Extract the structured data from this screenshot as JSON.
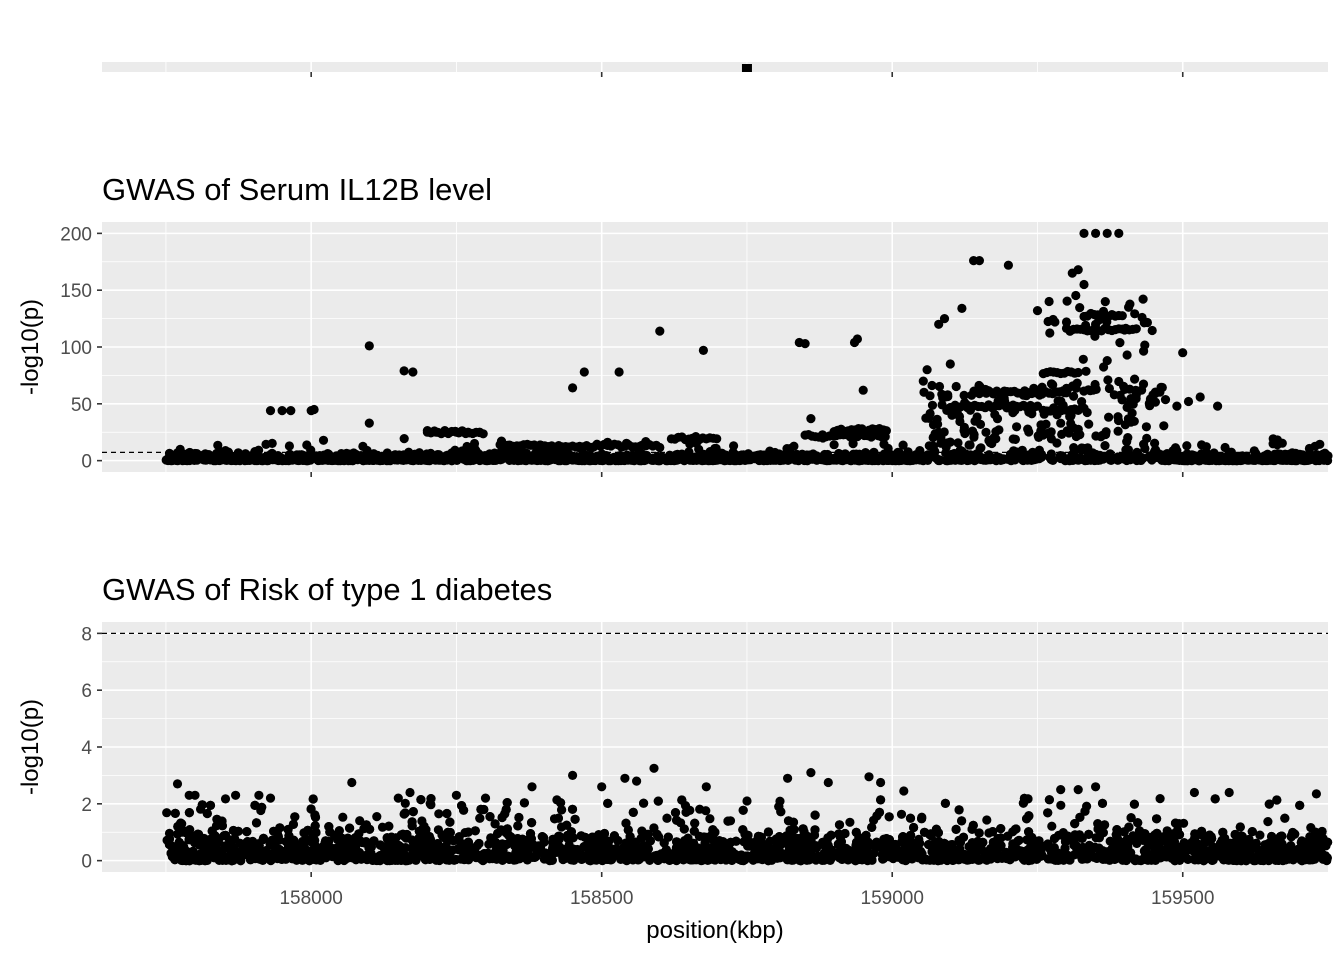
{
  "chart_data": [
    {
      "type": "scatter",
      "panel": "gene-track",
      "title": "",
      "xlim": [
        157640,
        159750
      ],
      "x_ticks": [
        158000,
        158500,
        159000,
        159500
      ],
      "x_tick_labels_shown": false,
      "marker": {
        "x": 158750,
        "shape": "square"
      },
      "grid": true
    },
    {
      "type": "scatter",
      "panel": "serum-il12b",
      "title": "GWAS of Serum IL12B level",
      "xlabel": "",
      "ylabel": "-log10(p)",
      "xlim": [
        157640,
        159750
      ],
      "ylim": [
        -10,
        210
      ],
      "y_ticks": [
        0,
        50,
        100,
        150,
        200
      ],
      "y_tick_labels": [
        "0",
        "50",
        "100",
        "150",
        "200"
      ],
      "x_ticks": [
        158000,
        158500,
        159000,
        159500
      ],
      "x_tick_labels_shown": false,
      "threshold": 7.3,
      "x_range_points": [
        157750,
        159750
      ],
      "grid": true,
      "highlights": [
        {
          "x": 157930,
          "y": 44
        },
        {
          "x": 157950,
          "y": 44
        },
        {
          "x": 157965,
          "y": 44
        },
        {
          "x": 158000,
          "y": 44
        },
        {
          "x": 158005,
          "y": 45
        },
        {
          "x": 158100,
          "y": 33
        },
        {
          "x": 158100,
          "y": 101
        },
        {
          "x": 158160,
          "y": 79
        },
        {
          "x": 158175,
          "y": 78
        },
        {
          "x": 158200,
          "y": 25
        },
        {
          "x": 158215,
          "y": 25
        },
        {
          "x": 158230,
          "y": 25
        },
        {
          "x": 158250,
          "y": 25
        },
        {
          "x": 158270,
          "y": 25
        },
        {
          "x": 158290,
          "y": 25
        },
        {
          "x": 158450,
          "y": 64
        },
        {
          "x": 158470,
          "y": 78
        },
        {
          "x": 158530,
          "y": 78
        },
        {
          "x": 158600,
          "y": 114
        },
        {
          "x": 158675,
          "y": 97
        },
        {
          "x": 158840,
          "y": 104
        },
        {
          "x": 158850,
          "y": 103
        },
        {
          "x": 158860,
          "y": 37
        },
        {
          "x": 158935,
          "y": 104
        },
        {
          "x": 158940,
          "y": 107
        },
        {
          "x": 158950,
          "y": 62
        },
        {
          "x": 158970,
          "y": 27
        },
        {
          "x": 158985,
          "y": 27
        },
        {
          "x": 159060,
          "y": 80
        },
        {
          "x": 159080,
          "y": 120
        },
        {
          "x": 159090,
          "y": 125
        },
        {
          "x": 159100,
          "y": 85
        },
        {
          "x": 159120,
          "y": 134
        },
        {
          "x": 159140,
          "y": 176
        },
        {
          "x": 159150,
          "y": 176
        },
        {
          "x": 159200,
          "y": 172
        },
        {
          "x": 159250,
          "y": 132
        },
        {
          "x": 159270,
          "y": 140
        },
        {
          "x": 159280,
          "y": 122
        },
        {
          "x": 159300,
          "y": 122
        },
        {
          "x": 159310,
          "y": 165
        },
        {
          "x": 159320,
          "y": 168
        },
        {
          "x": 159330,
          "y": 200
        },
        {
          "x": 159350,
          "y": 200
        },
        {
          "x": 159370,
          "y": 200
        },
        {
          "x": 159390,
          "y": 200
        },
        {
          "x": 159330,
          "y": 155
        },
        {
          "x": 159350,
          "y": 120
        },
        {
          "x": 159380,
          "y": 128
        },
        {
          "x": 159400,
          "y": 115
        },
        {
          "x": 159430,
          "y": 126
        },
        {
          "x": 159500,
          "y": 95
        },
        {
          "x": 159510,
          "y": 52
        },
        {
          "x": 159530,
          "y": 56
        },
        {
          "x": 159560,
          "y": 48
        },
        {
          "x": 159490,
          "y": 48
        },
        {
          "x": 159420,
          "y": 58
        },
        {
          "x": 159370,
          "y": 88
        }
      ]
    },
    {
      "type": "scatter",
      "panel": "type1-diabetes",
      "title": "GWAS of Risk of type 1 diabetes",
      "xlabel": "position(kbp)",
      "ylabel": "-log10(p)",
      "xlim": [
        157640,
        159750
      ],
      "ylim": [
        -0.4,
        8.4
      ],
      "y_ticks": [
        0,
        2,
        4,
        6,
        8
      ],
      "y_tick_labels": [
        "0",
        "2",
        "4",
        "6",
        "8"
      ],
      "x_ticks": [
        158000,
        158500,
        159000,
        159500
      ],
      "x_tick_labels": [
        "158000",
        "158500",
        "159000",
        "159500"
      ],
      "threshold": 8,
      "x_range_points": [
        157750,
        159750
      ],
      "grid": true,
      "highlights": [
        {
          "x": 157770,
          "y": 2.7
        },
        {
          "x": 157790,
          "y": 2.3
        },
        {
          "x": 157800,
          "y": 2.3
        },
        {
          "x": 157870,
          "y": 2.3
        },
        {
          "x": 157910,
          "y": 2.3
        },
        {
          "x": 157930,
          "y": 2.2
        },
        {
          "x": 158070,
          "y": 2.75
        },
        {
          "x": 158150,
          "y": 2.2
        },
        {
          "x": 158170,
          "y": 2.4
        },
        {
          "x": 158250,
          "y": 2.3
        },
        {
          "x": 158300,
          "y": 2.2
        },
        {
          "x": 158380,
          "y": 2.6
        },
        {
          "x": 158450,
          "y": 3.0
        },
        {
          "x": 158500,
          "y": 2.6
        },
        {
          "x": 158540,
          "y": 2.9
        },
        {
          "x": 158560,
          "y": 2.8
        },
        {
          "x": 158590,
          "y": 3.25
        },
        {
          "x": 158680,
          "y": 2.6
        },
        {
          "x": 158750,
          "y": 2.1
        },
        {
          "x": 158820,
          "y": 2.9
        },
        {
          "x": 158860,
          "y": 3.1
        },
        {
          "x": 158890,
          "y": 2.75
        },
        {
          "x": 158960,
          "y": 2.95
        },
        {
          "x": 158980,
          "y": 2.75
        },
        {
          "x": 159020,
          "y": 2.45
        },
        {
          "x": 159290,
          "y": 2.5
        },
        {
          "x": 159320,
          "y": 2.5
        },
        {
          "x": 159350,
          "y": 2.6
        },
        {
          "x": 159520,
          "y": 2.4
        },
        {
          "x": 159580,
          "y": 2.4
        },
        {
          "x": 159730,
          "y": 2.35
        }
      ]
    }
  ]
}
